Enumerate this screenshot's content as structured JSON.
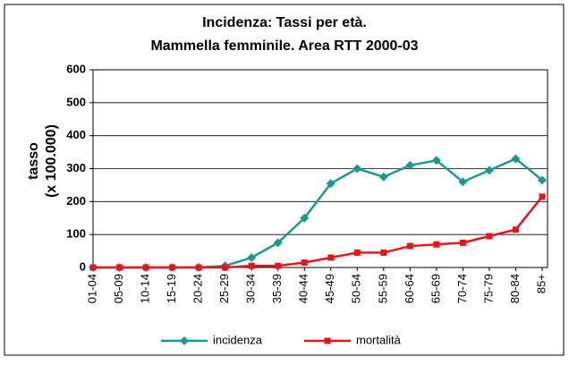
{
  "chart_data": {
    "type": "line",
    "title": "Incidenza: Tassi per età.",
    "subtitle": "Mammella femminile. Area RTT 2000-03",
    "y_label": [
      "tasso",
      "(x 100.000)"
    ],
    "categories": [
      "01-04",
      "05-09",
      "10-14",
      "15-19",
      "20-24",
      "25-29",
      "30-34",
      "35-39",
      "40-44",
      "45-49",
      "50-54",
      "55-59",
      "60-64",
      "65-69",
      "70-74",
      "75-79",
      "80-84",
      "85+"
    ],
    "series": [
      {
        "name": "incidenza",
        "color": "#1a9a8a",
        "marker": "diamond",
        "values": [
          0,
          0,
          0,
          0,
          0,
          5,
          30,
          75,
          150,
          255,
          300,
          275,
          310,
          325,
          260,
          295,
          330,
          265
        ]
      },
      {
        "name": "mortalità",
        "color": "#e8141c",
        "marker": "square",
        "values": [
          0,
          0,
          0,
          0,
          0,
          0,
          5,
          5,
          15,
          30,
          45,
          45,
          65,
          70,
          75,
          95,
          115,
          215
        ]
      }
    ],
    "ylim": [
      0,
      600
    ],
    "yticks": [
      0,
      100,
      200,
      300,
      400,
      500,
      600
    ],
    "grid": true,
    "legend": "bottom"
  }
}
